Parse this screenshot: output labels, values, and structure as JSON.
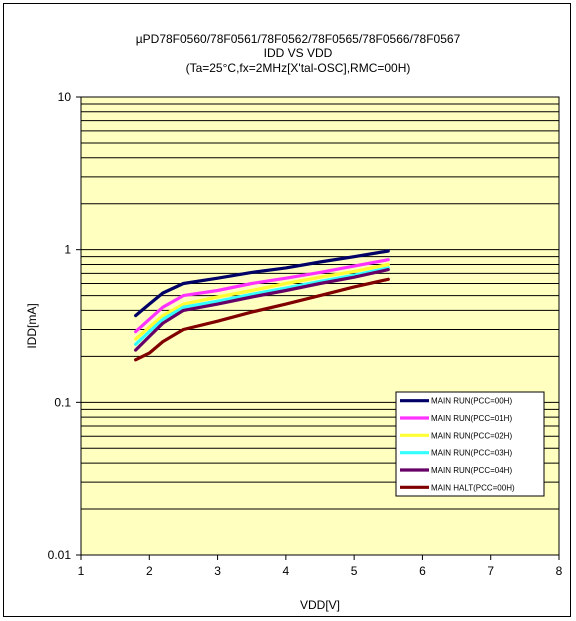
{
  "chart_data": {
    "type": "line",
    "title_lines": [
      "µPD78F0560/78F0561/78F0562/78F0565/78F0566/78F0567",
      "IDD VS VDD",
      "(Ta=25°C,fx=2MHz[X'tal-OSC],RMC=00H)"
    ],
    "xlabel": "VDD[V]",
    "ylabel": "IDD[mA]",
    "xlim": [
      1,
      8
    ],
    "ylim": [
      0.01,
      10
    ],
    "y_scale": "log",
    "x_ticks": [
      "1",
      "2",
      "3",
      "4",
      "5",
      "6",
      "7",
      "8"
    ],
    "y_ticks": [
      "0.01",
      "0.1",
      "1",
      "10"
    ],
    "grid": true,
    "legend_position": "lower-right",
    "plot_background": "#ffffc0",
    "series": [
      {
        "name": "MAIN RUN(PCC=00H)",
        "color": "#000066",
        "x": [
          1.8,
          2.0,
          2.2,
          2.5,
          3.0,
          3.5,
          4.0,
          4.5,
          5.0,
          5.5
        ],
        "y": [
          0.37,
          0.44,
          0.52,
          0.6,
          0.65,
          0.71,
          0.76,
          0.83,
          0.9,
          0.98
        ]
      },
      {
        "name": "MAIN RUN(PCC=01H)",
        "color": "#ff33ff",
        "x": [
          1.8,
          2.0,
          2.2,
          2.5,
          3.0,
          3.5,
          4.0,
          4.5,
          5.0,
          5.5
        ],
        "y": [
          0.29,
          0.35,
          0.42,
          0.5,
          0.54,
          0.6,
          0.65,
          0.71,
          0.78,
          0.86
        ]
      },
      {
        "name": "MAIN RUN(PCC=02H)",
        "color": "#ffff33",
        "x": [
          1.8,
          2.0,
          2.2,
          2.5,
          3.0,
          3.5,
          4.0,
          4.5,
          5.0,
          5.5
        ],
        "y": [
          0.26,
          0.31,
          0.37,
          0.44,
          0.49,
          0.54,
          0.6,
          0.66,
          0.72,
          0.8
        ]
      },
      {
        "name": "MAIN RUN(PCC=03H)",
        "color": "#33ffff",
        "x": [
          1.8,
          2.0,
          2.2,
          2.5,
          3.0,
          3.5,
          4.0,
          4.5,
          5.0,
          5.5
        ],
        "y": [
          0.24,
          0.29,
          0.35,
          0.42,
          0.46,
          0.51,
          0.56,
          0.62,
          0.68,
          0.76
        ]
      },
      {
        "name": "MAIN RUN(PCC=04H)",
        "color": "#660066",
        "x": [
          1.8,
          2.0,
          2.2,
          2.5,
          3.0,
          3.5,
          4.0,
          4.5,
          5.0,
          5.5
        ],
        "y": [
          0.22,
          0.27,
          0.33,
          0.4,
          0.44,
          0.49,
          0.54,
          0.6,
          0.66,
          0.74
        ]
      },
      {
        "name": "MAIN HALT(PCC=00H)",
        "color": "#800000",
        "x": [
          1.8,
          2.0,
          2.2,
          2.5,
          3.0,
          3.5,
          4.0,
          4.5,
          5.0,
          5.5
        ],
        "y": [
          0.19,
          0.21,
          0.25,
          0.3,
          0.34,
          0.39,
          0.44,
          0.5,
          0.57,
          0.64
        ]
      }
    ]
  }
}
